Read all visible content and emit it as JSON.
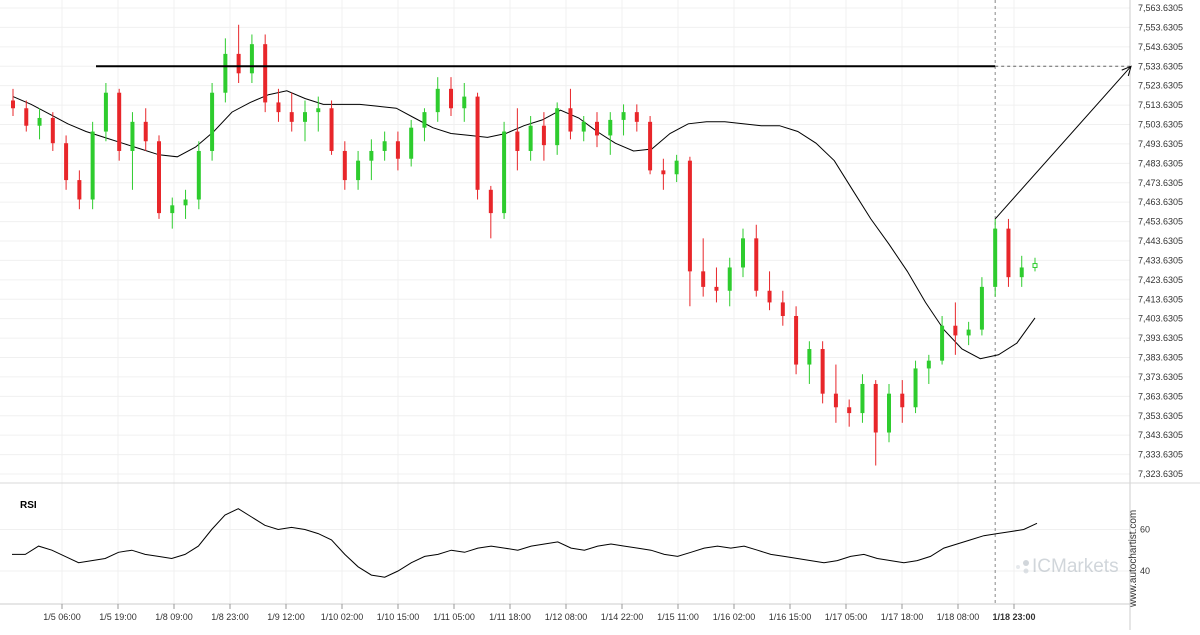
{
  "chart_data": {
    "type": "candlestick",
    "panels": [
      {
        "name": "price",
        "y_tick_labels": [
          "7,563.6305",
          "7,553.6305",
          "7,543.6305",
          "7,533.6305",
          "7,523.6305",
          "7,513.6305",
          "7,503.6305",
          "7,493.6305",
          "7,483.6305",
          "7,473.6305",
          "7,463.6305",
          "7,453.6305",
          "7,443.6305",
          "7,433.6305",
          "7,423.6305",
          "7,413.6305",
          "7,403.6305",
          "7,393.6305",
          "7,383.6305",
          "7,373.6305",
          "7,363.6305",
          "7,353.6305",
          "7,343.6305",
          "7,333.6305",
          "7,323.6305"
        ],
        "ylim": [
          7318,
          7566
        ],
        "resistance_level": 7533.6,
        "projection": {
          "from": 7455,
          "to": 7533.6
        },
        "moving_average": [
          7518,
          7514,
          7509,
          7504,
          7500,
          7497,
          7494,
          7491,
          7488,
          7487,
          7492,
          7500,
          7510,
          7515,
          7519,
          7521,
          7517,
          7514,
          7514,
          7514,
          7513,
          7512,
          7507,
          7502,
          7499,
          7498,
          7497,
          7499,
          7503,
          7506,
          7511,
          7507,
          7500,
          7494,
          7490,
          7491,
          7499,
          7504,
          7505,
          7505,
          7504,
          7503,
          7503,
          7500,
          7494,
          7485,
          7470,
          7455,
          7442,
          7428,
          7412,
          7398,
          7388,
          7383,
          7385,
          7391,
          7404
        ],
        "candles": [
          [
            7516,
            7522,
            7508,
            7512
          ],
          [
            7512,
            7516,
            7500,
            7503
          ],
          [
            7503,
            7512,
            7496,
            7507
          ],
          [
            7507,
            7510,
            7490,
            7494
          ],
          [
            7494,
            7498,
            7470,
            7475
          ],
          [
            7475,
            7480,
            7460,
            7465
          ],
          [
            7465,
            7505,
            7460,
            7500
          ],
          [
            7500,
            7525,
            7495,
            7520
          ],
          [
            7520,
            7522,
            7485,
            7490
          ],
          [
            7490,
            7510,
            7470,
            7505
          ],
          [
            7505,
            7512,
            7490,
            7495
          ],
          [
            7495,
            7498,
            7455,
            7458
          ],
          [
            7458,
            7466,
            7450,
            7462
          ],
          [
            7462,
            7470,
            7455,
            7465
          ],
          [
            7465,
            7495,
            7460,
            7490
          ],
          [
            7490,
            7525,
            7485,
            7520
          ],
          [
            7520,
            7548,
            7515,
            7540
          ],
          [
            7540,
            7555,
            7525,
            7530
          ],
          [
            7530,
            7550,
            7525,
            7545
          ],
          [
            7545,
            7550,
            7510,
            7515
          ],
          [
            7515,
            7522,
            7505,
            7510
          ],
          [
            7510,
            7520,
            7500,
            7505
          ],
          [
            7505,
            7516,
            7495,
            7510
          ],
          [
            7510,
            7518,
            7500,
            7512
          ],
          [
            7512,
            7516,
            7488,
            7490
          ],
          [
            7490,
            7495,
            7470,
            7475
          ],
          [
            7475,
            7490,
            7470,
            7485
          ],
          [
            7485,
            7496,
            7475,
            7490
          ],
          [
            7490,
            7500,
            7485,
            7495
          ],
          [
            7495,
            7500,
            7480,
            7486
          ],
          [
            7486,
            7506,
            7482,
            7502
          ],
          [
            7502,
            7512,
            7495,
            7510
          ],
          [
            7510,
            7528,
            7505,
            7522
          ],
          [
            7522,
            7528,
            7508,
            7512
          ],
          [
            7512,
            7525,
            7505,
            7518
          ],
          [
            7518,
            7520,
            7465,
            7470
          ],
          [
            7470,
            7472,
            7445,
            7458
          ],
          [
            7458,
            7505,
            7455,
            7500
          ],
          [
            7500,
            7512,
            7480,
            7490
          ],
          [
            7490,
            7508,
            7485,
            7503
          ],
          [
            7503,
            7510,
            7485,
            7493
          ],
          [
            7493,
            7515,
            7488,
            7512
          ],
          [
            7512,
            7522,
            7496,
            7500
          ],
          [
            7500,
            7508,
            7495,
            7505
          ],
          [
            7505,
            7510,
            7492,
            7498
          ],
          [
            7498,
            7510,
            7488,
            7506
          ],
          [
            7506,
            7514,
            7498,
            7510
          ],
          [
            7510,
            7514,
            7500,
            7505
          ],
          [
            7505,
            7508,
            7478,
            7480
          ],
          [
            7480,
            7486,
            7470,
            7478
          ],
          [
            7478,
            7488,
            7474,
            7485
          ],
          [
            7485,
            7487,
            7410,
            7428
          ],
          [
            7428,
            7445,
            7415,
            7420
          ],
          [
            7420,
            7430,
            7412,
            7418
          ],
          [
            7418,
            7435,
            7410,
            7430
          ],
          [
            7430,
            7450,
            7425,
            7445
          ],
          [
            7445,
            7452,
            7415,
            7418
          ],
          [
            7418,
            7428,
            7408,
            7412
          ],
          [
            7412,
            7418,
            7400,
            7405
          ],
          [
            7405,
            7410,
            7375,
            7380
          ],
          [
            7380,
            7392,
            7370,
            7388
          ],
          [
            7388,
            7392,
            7360,
            7365
          ],
          [
            7365,
            7380,
            7350,
            7358
          ],
          [
            7358,
            7362,
            7348,
            7355
          ],
          [
            7355,
            7375,
            7350,
            7370
          ],
          [
            7370,
            7372,
            7328,
            7345
          ],
          [
            7345,
            7370,
            7340,
            7365
          ],
          [
            7365,
            7372,
            7350,
            7358
          ],
          [
            7358,
            7382,
            7355,
            7378
          ],
          [
            7378,
            7385,
            7370,
            7382
          ],
          [
            7382,
            7405,
            7380,
            7400
          ],
          [
            7400,
            7412,
            7385,
            7395
          ],
          [
            7395,
            7402,
            7390,
            7398
          ],
          [
            7398,
            7425,
            7395,
            7420
          ],
          [
            7420,
            7455,
            7415,
            7450
          ],
          [
            7450,
            7455,
            7420,
            7425
          ],
          [
            7425,
            7436,
            7420,
            7430
          ],
          [
            7430,
            7435,
            7428,
            7432
          ]
        ]
      },
      {
        "name": "RSI",
        "title": "RSI",
        "y_tick_labels": [
          "60",
          "40"
        ],
        "ylim": [
          26,
          80
        ],
        "values": [
          48,
          48,
          52,
          50,
          47,
          44,
          45,
          46,
          49,
          50,
          48,
          47,
          46,
          48,
          52,
          60,
          67,
          70,
          66,
          62,
          60,
          61,
          60,
          58,
          55,
          48,
          42,
          38,
          37,
          40,
          44,
          47,
          48,
          50,
          49,
          51,
          52,
          51,
          50,
          52,
          53,
          54,
          51,
          50,
          52,
          53,
          52,
          51,
          50,
          48,
          47,
          49,
          51,
          52,
          51,
          52,
          50,
          48,
          47,
          46,
          45,
          44,
          45,
          47,
          48,
          46,
          45,
          44,
          45,
          47,
          51,
          53,
          55,
          57,
          58,
          59,
          60,
          63
        ]
      }
    ],
    "x_tick_labels": [
      "1/5 06:00",
      "1/5 19:00",
      "1/8 09:00",
      "1/8 23:00",
      "1/9 12:00",
      "1/10 02:00",
      "1/10 15:00",
      "1/11 05:00",
      "1/11 18:00",
      "1/12 08:00",
      "1/14 22:00",
      "1/15 11:00",
      "1/16 02:00",
      "1/16 15:00",
      "1/17 05:00",
      "1/17 18:00",
      "1/18 08:00",
      "1/18 23:00"
    ],
    "x_tick_bold": "1/18 23:00",
    "colors": {
      "bull": "#2ecc2e",
      "bear": "#e8262a",
      "line": "#000000",
      "grid": "#f0f0f0"
    }
  },
  "watermark": {
    "brand": "ICMarkets",
    "source": "www.autochartist.com"
  }
}
